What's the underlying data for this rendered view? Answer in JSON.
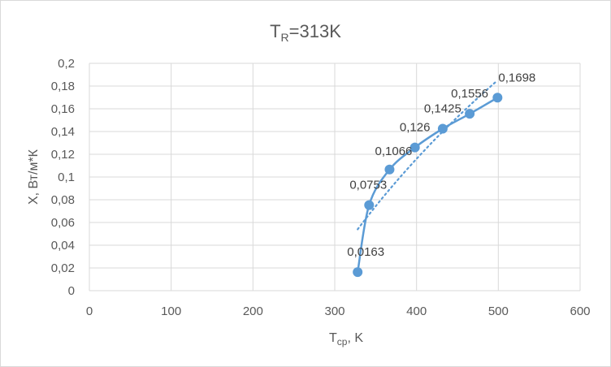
{
  "chart_data": {
    "type": "scatter",
    "title_main": "T",
    "title_sub": "R",
    "title_rest": "=313K",
    "xlabel_main": "T",
    "xlabel_sub": "ср",
    "xlabel_rest": ", K",
    "ylabel": "X, Вт/м*К",
    "xlim": [
      0,
      600
    ],
    "ylim": [
      0,
      0.2
    ],
    "x_ticks": [
      0,
      100,
      200,
      300,
      400,
      500,
      600
    ],
    "x_tick_labels": [
      "0",
      "100",
      "200",
      "300",
      "400",
      "500",
      "600"
    ],
    "y_ticks": [
      0,
      0.02,
      0.04,
      0.06,
      0.08,
      0.1,
      0.12,
      0.14,
      0.16,
      0.18,
      0.2
    ],
    "y_tick_labels": [
      "0",
      "0,02",
      "0,04",
      "0,06",
      "0,08",
      "0,1",
      "0,12",
      "0,14",
      "0,16",
      "0,18",
      "0,2"
    ],
    "grid": true,
    "series": [
      {
        "x": [
          328,
          342,
          367,
          398,
          432,
          465,
          499
        ],
        "y": [
          0.0163,
          0.0753,
          0.1066,
          0.126,
          0.1425,
          0.1556,
          0.1698
        ],
        "labels": [
          "0,0163",
          "0,0753",
          "0,1066",
          "0,126",
          "0,1425",
          "0,1556",
          "0,1698"
        ],
        "color": "#5b9bd5",
        "style": "smooth-line-markers"
      }
    ],
    "trendline": {
      "type": "log",
      "x_start": 328,
      "x_end": 499,
      "y_start": 0.054,
      "y_end": 0.185,
      "color": "#5b9bd5",
      "style": "dotted"
    }
  },
  "colors": {
    "grid": "#d9d9d9",
    "text": "#595959",
    "series": "#5b9bd5"
  }
}
